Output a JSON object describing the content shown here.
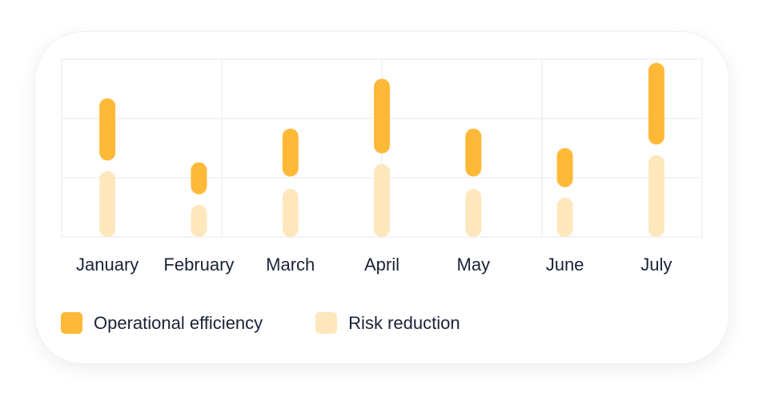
{
  "colors": {
    "operational": "#ffb938",
    "risk": "#ffe7bd",
    "grid": "#eef0f4",
    "text": "#1a2236"
  },
  "legend": [
    {
      "label": "Operational efficiency",
      "color": "#ffb938"
    },
    {
      "label": "Risk reduction",
      "color": "#ffe7bd"
    }
  ],
  "chart_data": {
    "type": "bar",
    "subtype": "floating-range",
    "title": "",
    "xlabel": "",
    "ylabel": "",
    "categories": [
      "January",
      "February",
      "March",
      "April",
      "May",
      "June",
      "July"
    ],
    "y_range": [
      0,
      100
    ],
    "grid": true,
    "legend_position": "bottom-left",
    "series": [
      {
        "name": "Operational efficiency",
        "color": "#ffb938",
        "ranges": [
          [
            43,
            78
          ],
          [
            24,
            42
          ],
          [
            34,
            61
          ],
          [
            47,
            89
          ],
          [
            34,
            61
          ],
          [
            28,
            50
          ],
          [
            52,
            98
          ]
        ]
      },
      {
        "name": "Risk reduction",
        "color": "#ffe7bd",
        "ranges": [
          [
            0,
            37
          ],
          [
            0,
            18
          ],
          [
            0,
            27
          ],
          [
            0,
            41
          ],
          [
            0,
            27
          ],
          [
            0,
            22
          ],
          [
            0,
            46
          ]
        ]
      }
    ]
  }
}
